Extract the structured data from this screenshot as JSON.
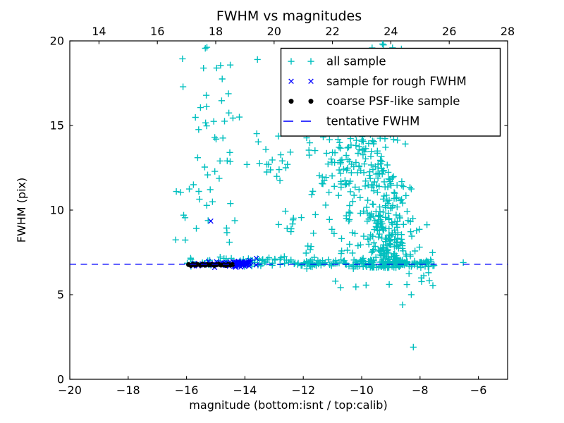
{
  "figure": {
    "background": "#ffffff"
  },
  "chart_data": {
    "type": "scatter",
    "title": "FWHM vs magnitudes",
    "xlabel": "magnitude (bottom:isnt / top:calib)",
    "ylabel": "FWHM (pix)",
    "xlim": [
      -20,
      -5
    ],
    "top_xlim": [
      13,
      28
    ],
    "ylim": [
      0,
      20
    ],
    "grid": false,
    "legend_position": "upper right",
    "x_ticks": {
      "values": [
        -20,
        -18,
        -16,
        -14,
        -12,
        -10,
        -8,
        -6
      ],
      "labels": [
        "−20",
        "−18",
        "−16",
        "−14",
        "−12",
        "−10",
        "−8",
        "−6"
      ]
    },
    "top_ticks": {
      "values": [
        14,
        16,
        18,
        20,
        22,
        24,
        26,
        28
      ],
      "labels": [
        "14",
        "16",
        "18",
        "20",
        "22",
        "24",
        "26",
        "28"
      ]
    },
    "y_ticks": {
      "values": [
        0,
        5,
        10,
        15,
        20
      ],
      "labels": [
        "0",
        "5",
        "10",
        "15",
        "20"
      ]
    },
    "tentative_fwhm": 6.8,
    "line": {
      "y": 6.8,
      "color": "#0000ff",
      "style": "dashed"
    },
    "legend": [
      {
        "label": "all sample",
        "marker": "plus",
        "color": "#00bfbf"
      },
      {
        "label": "sample for rough FWHM",
        "marker": "x",
        "color": "#0000ff"
      },
      {
        "label": "coarse PSF-like sample",
        "marker": "dot",
        "color": "#000000"
      },
      {
        "label": "tentative FWHM",
        "marker": "dash",
        "color": "#0000ff"
      }
    ],
    "series": [
      {
        "name": "all sample",
        "marker": "plus",
        "color": "#00bfbf",
        "seed": 101,
        "points": [
          [
            -6.52,
            6.9
          ],
          [
            -7.73,
            6.95
          ],
          [
            -8.23,
            1.9
          ],
          [
            -8.6,
            4.4
          ],
          [
            -8.3,
            5.0
          ],
          [
            -10.9,
            5.8
          ],
          [
            -10.72,
            5.42
          ],
          [
            -8.45,
            5.6
          ],
          [
            -7.68,
            5.83
          ],
          [
            -7.56,
            5.54
          ],
          [
            -13.57,
            18.9
          ],
          [
            -13.19,
            12.7
          ],
          [
            -13.25,
            12.25
          ],
          [
            -12.6,
            12.5
          ],
          [
            -16.35,
            11.1
          ],
          [
            -16.2,
            11.05
          ],
          [
            -16.1,
            9.7
          ],
          [
            -16.05,
            9.55
          ]
        ],
        "clusters": [
          {
            "n": 52,
            "x": {
              "dist": "gauss",
              "mean": -15.1,
              "sd": 0.6,
              "min": -16.45,
              "max": -13.3
            },
            "y": {
              "dist": "uniform",
              "min": 7.6,
              "max": 19.8
            }
          },
          {
            "n": 15,
            "x": {
              "dist": "uniform",
              "min": -13.6,
              "max": -12.3
            },
            "y": {
              "dist": "uniform",
              "min": 11.5,
              "max": 14.6
            }
          },
          {
            "n": 22,
            "x": {
              "dist": "uniform",
              "min": -12.95,
              "max": -10.9
            },
            "y": {
              "dist": "uniform",
              "min": 7.2,
              "max": 11.4
            }
          },
          {
            "n": 85,
            "x": {
              "dist": "gauss",
              "mean": -10.4,
              "sd": 0.8,
              "min": -12.3,
              "max": -8.6
            },
            "y": {
              "dist": "uniform",
              "min": 11.3,
              "max": 14.5
            }
          },
          {
            "n": 145,
            "x": {
              "dist": "gauss",
              "mean": -9.55,
              "sd": 0.6,
              "min": -11.3,
              "max": -8.4
            },
            "y": {
              "dist": "pow",
              "min": 6.6,
              "max": 14.5,
              "pow": 1.3
            }
          },
          {
            "n": 180,
            "x": {
              "dist": "gauss",
              "mean": -9.0,
              "sd": 0.42,
              "min": -9.95,
              "max": -7.55
            },
            "y": {
              "dist": "pow",
              "min": 6.6,
              "max": 11.5,
              "pow": 1.8
            }
          },
          {
            "n": 62,
            "x": {
              "dist": "uniform",
              "min": -16.0,
              "max": -12.3
            },
            "y": {
              "dist": "gauss",
              "mean": 6.95,
              "sd": 0.16
            }
          },
          {
            "n": 150,
            "x": {
              "dist": "uniform",
              "min": -12.3,
              "max": -7.5
            },
            "y": {
              "dist": "gauss",
              "mean": 6.85,
              "sd": 0.12
            }
          },
          {
            "n": 8,
            "x": {
              "dist": "uniform",
              "min": -10.6,
              "max": -7.6
            },
            "y": {
              "dist": "uniform",
              "min": 5.3,
              "max": 6.35
            }
          },
          {
            "n": 5,
            "x": {
              "dist": "uniform",
              "min": -9.75,
              "max": -8.6
            },
            "y": {
              "dist": "uniform",
              "min": 19.4,
              "max": 19.85
            }
          }
        ]
      },
      {
        "name": "sample for rough FWHM",
        "marker": "x",
        "color": "#0000ff",
        "seed": 202,
        "points": [
          [
            -15.17,
            9.35
          ]
        ],
        "clusters": [
          {
            "n": 26,
            "x": {
              "dist": "uniform",
              "min": -15.92,
              "max": -14.6
            },
            "y": {
              "dist": "gauss",
              "mean": 6.8,
              "sd": 0.09
            }
          },
          {
            "n": 58,
            "x": {
              "dist": "gauss",
              "mean": -14.1,
              "sd": 0.3,
              "min": -14.7,
              "max": -13.6
            },
            "y": {
              "dist": "gauss",
              "mean": 6.85,
              "sd": 0.11
            }
          }
        ]
      },
      {
        "name": "coarse PSF-like sample",
        "marker": "dot",
        "color": "#000000",
        "seed": 3,
        "points": [
          [
            -15.93,
            6.78
          ],
          [
            -15.85,
            6.73
          ],
          [
            -15.78,
            6.8
          ],
          [
            -15.7,
            6.75
          ],
          [
            -15.63,
            6.79
          ],
          [
            -15.52,
            6.74
          ],
          [
            -15.45,
            6.8
          ],
          [
            -15.37,
            6.74
          ],
          [
            -15.3,
            6.78
          ],
          [
            -15.22,
            6.76
          ],
          [
            -15.12,
            6.79
          ],
          [
            -15.05,
            6.73
          ],
          [
            -14.97,
            6.77
          ],
          [
            -14.9,
            6.8
          ],
          [
            -14.82,
            6.75
          ],
          [
            -14.72,
            6.77
          ],
          [
            -14.65,
            6.73
          ],
          [
            -14.57,
            6.79
          ],
          [
            -14.5,
            6.75
          ],
          [
            -14.43,
            6.78
          ]
        ],
        "clusters": []
      }
    ]
  }
}
